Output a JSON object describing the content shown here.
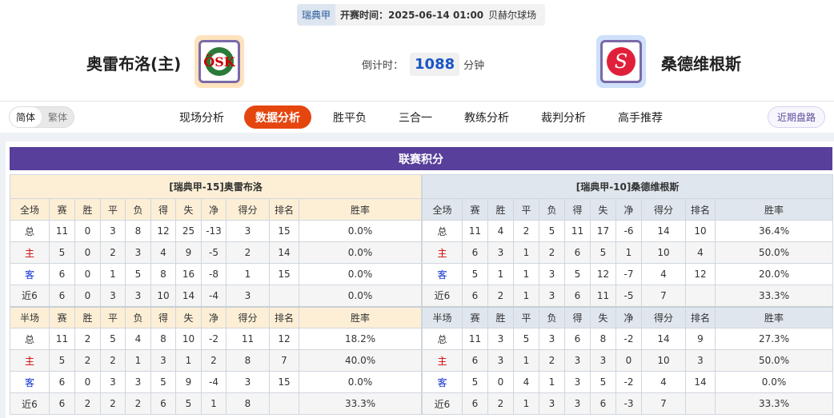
{
  "match": {
    "league": "瑞典甲",
    "time": "开赛时间：2025-06-14 01:00",
    "venue": "贝赫尔球场",
    "home": "奥雷布洛(主)",
    "away": "桑德维根斯",
    "countdown_label": "倒计时：",
    "countdown": "1088",
    "countdown_unit": "分钟"
  },
  "nav": {
    "lang": [
      "简体",
      "繁体"
    ],
    "tabs": [
      "现场分析",
      "数据分析",
      "胜平负",
      "三合一",
      "教练分析",
      "裁判分析",
      "高手推荐"
    ],
    "active": "数据分析",
    "recent": "近期盘路"
  },
  "standings": {
    "title": "联赛积分",
    "columns_full": [
      "全场",
      "赛",
      "胜",
      "平",
      "负",
      "得",
      "失",
      "净",
      "得分",
      "排名",
      "胜率"
    ],
    "columns_half": [
      "半场",
      "赛",
      "胜",
      "平",
      "负",
      "得",
      "失",
      "净",
      "得分",
      "排名",
      "胜率"
    ],
    "home": {
      "title": "[瑞典甲-15]奥雷布洛",
      "full": [
        [
          "总",
          "11",
          "0",
          "3",
          "8",
          "12",
          "25",
          "-13",
          "3",
          "15",
          "0.0%"
        ],
        [
          "主",
          "5",
          "0",
          "2",
          "3",
          "4",
          "9",
          "-5",
          "2",
          "14",
          "0.0%"
        ],
        [
          "客",
          "6",
          "0",
          "1",
          "5",
          "8",
          "16",
          "-8",
          "1",
          "15",
          "0.0%"
        ],
        [
          "近6",
          "6",
          "0",
          "3",
          "3",
          "10",
          "14",
          "-4",
          "3",
          "",
          "0.0%"
        ]
      ],
      "half": [
        [
          "总",
          "11",
          "2",
          "5",
          "4",
          "8",
          "10",
          "-2",
          "11",
          "12",
          "18.2%"
        ],
        [
          "主",
          "5",
          "2",
          "2",
          "1",
          "3",
          "1",
          "2",
          "8",
          "7",
          "40.0%"
        ],
        [
          "客",
          "6",
          "0",
          "3",
          "3",
          "5",
          "9",
          "-4",
          "3",
          "15",
          "0.0%"
        ],
        [
          "近6",
          "6",
          "2",
          "2",
          "2",
          "6",
          "5",
          "1",
          "8",
          "",
          "33.3%"
        ]
      ]
    },
    "away": {
      "title": "[瑞典甲-10]桑德维根斯",
      "full": [
        [
          "总",
          "11",
          "4",
          "2",
          "5",
          "11",
          "17",
          "-6",
          "14",
          "10",
          "36.4%"
        ],
        [
          "主",
          "6",
          "3",
          "1",
          "2",
          "6",
          "5",
          "1",
          "10",
          "4",
          "50.0%"
        ],
        [
          "客",
          "5",
          "1",
          "1",
          "3",
          "5",
          "12",
          "-7",
          "4",
          "12",
          "20.0%"
        ],
        [
          "近6",
          "6",
          "2",
          "1",
          "3",
          "6",
          "11",
          "-5",
          "7",
          "",
          "33.3%"
        ]
      ],
      "half": [
        [
          "总",
          "11",
          "3",
          "5",
          "3",
          "6",
          "8",
          "-2",
          "14",
          "9",
          "27.3%"
        ],
        [
          "主",
          "6",
          "3",
          "1",
          "2",
          "3",
          "3",
          "0",
          "10",
          "3",
          "50.0%"
        ],
        [
          "客",
          "5",
          "0",
          "4",
          "1",
          "3",
          "5",
          "-2",
          "4",
          "14",
          "0.0%"
        ],
        [
          "近6",
          "6",
          "2",
          "1",
          "3",
          "3",
          "6",
          "-3",
          "7",
          "",
          "33.3%"
        ]
      ]
    }
  },
  "colors": {
    "accent": "#e5450f",
    "title_bar": "#573f9b",
    "home_label": "#d40000",
    "away_label": "#1030d0"
  }
}
